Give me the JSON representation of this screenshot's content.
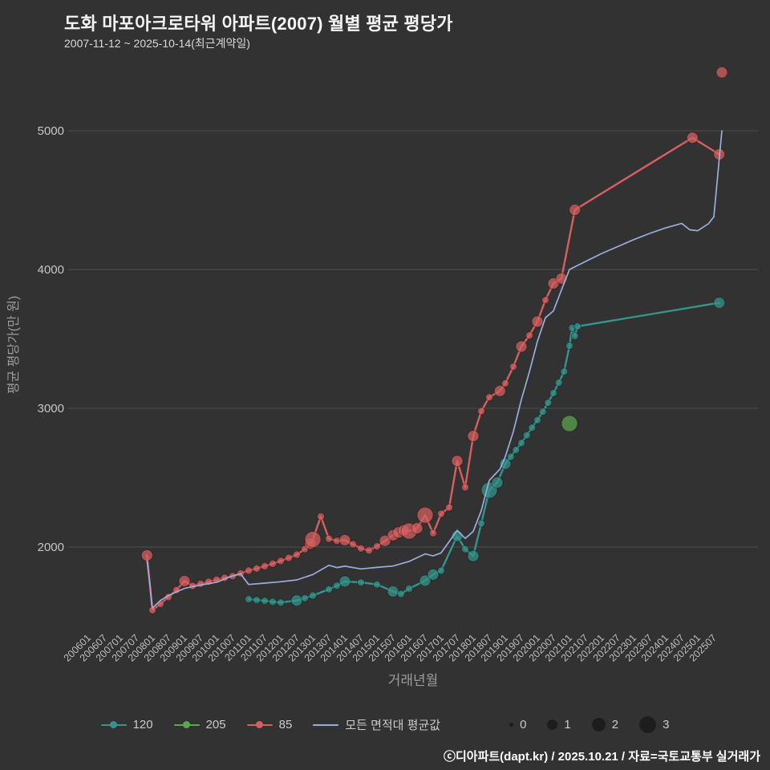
{
  "header": {
    "title": "도화 마포아크로타워 아파트(2007) 월별 평균 평당가",
    "subtitle": "2007-11-12 ~ 2025-10-14(최근계약일)"
  },
  "footer": {
    "text": "ⓒ디아파트(dapt.kr) / 2025.10.21 / 자료=국토교통부 실거래가"
  },
  "chart_data": {
    "type": "scatter",
    "title": "도화 마포아크로타워 아파트(2007) 월별 평균 평당가",
    "xlabel": "거래년월",
    "ylabel": "평균 평당가(만 원)",
    "background_color": "#323232",
    "grid": "horizontal",
    "legend_position": "bottom",
    "y_ticks": [
      2000,
      3000,
      4000,
      5000
    ],
    "ylim": [
      1450,
      5550
    ],
    "x_ticks": [
      "200601",
      "200607",
      "200701",
      "200707",
      "200801",
      "200807",
      "200901",
      "200907",
      "201001",
      "201007",
      "201101",
      "201107",
      "201201",
      "201207",
      "201301",
      "201307",
      "201401",
      "201407",
      "201501",
      "201507",
      "201601",
      "201607",
      "201701",
      "201707",
      "201801",
      "201807",
      "201901",
      "201907",
      "202001",
      "202007",
      "202101",
      "202107",
      "202201",
      "202207",
      "202301",
      "202307",
      "202401",
      "202407",
      "202501",
      "202507"
    ],
    "size_legend": {
      "label_values": [
        0,
        1,
        2,
        3
      ]
    },
    "series": [
      {
        "name": "120",
        "color": "#35948b",
        "mode": "lines+markers",
        "points": [
          [
            201101,
            1625,
            1
          ],
          [
            201104,
            1618,
            1
          ],
          [
            201107,
            1612,
            1
          ],
          [
            201110,
            1605,
            1
          ],
          [
            201201,
            1600,
            1
          ],
          [
            201207,
            1615,
            2
          ],
          [
            201210,
            1632,
            1
          ],
          [
            201301,
            1650,
            1
          ],
          [
            201307,
            1695,
            1
          ],
          [
            201310,
            1722,
            1
          ],
          [
            201401,
            1752,
            2
          ],
          [
            201407,
            1745,
            1
          ],
          [
            201501,
            1730,
            1
          ],
          [
            201507,
            1680,
            2
          ],
          [
            201510,
            1662,
            1
          ],
          [
            201601,
            1700,
            1
          ],
          [
            201607,
            1758,
            2
          ],
          [
            201610,
            1802,
            2
          ],
          [
            201701,
            1830,
            1
          ],
          [
            201707,
            2080,
            2
          ],
          [
            201710,
            1985,
            1
          ],
          [
            201801,
            1935,
            2
          ],
          [
            201804,
            2170,
            1
          ],
          [
            201807,
            2410,
            3
          ],
          [
            201810,
            2465,
            2
          ],
          [
            201901,
            2600,
            2
          ],
          [
            201903,
            2650,
            1
          ],
          [
            201905,
            2700,
            1
          ],
          [
            201907,
            2750,
            1
          ],
          [
            201909,
            2805,
            1
          ],
          [
            201911,
            2860,
            1
          ],
          [
            202001,
            2915,
            1
          ],
          [
            202003,
            2975,
            1
          ],
          [
            202005,
            3040,
            1
          ],
          [
            202007,
            3110,
            1
          ],
          [
            202009,
            3185,
            1
          ],
          [
            202011,
            3265,
            1
          ],
          [
            202101,
            3450,
            1
          ],
          [
            202102,
            3580,
            1
          ],
          [
            202103,
            3520,
            1
          ],
          [
            202104,
            3590,
            1
          ],
          [
            202509,
            3760,
            2
          ]
        ]
      },
      {
        "name": "205",
        "color": "#5ba54d",
        "mode": "markers",
        "points": [
          [
            202101,
            2890,
            3
          ]
        ]
      },
      {
        "name": "85",
        "color": "#d75f5f",
        "mode": "lines+markers",
        "points": [
          [
            200711,
            1940,
            2
          ],
          [
            200801,
            1545,
            1
          ],
          [
            200804,
            1590,
            1
          ],
          [
            200807,
            1640,
            1
          ],
          [
            200810,
            1690,
            1
          ],
          [
            200901,
            1755,
            2
          ],
          [
            200904,
            1720,
            1
          ],
          [
            200907,
            1735,
            1
          ],
          [
            200910,
            1750,
            1
          ],
          [
            201001,
            1765,
            1
          ],
          [
            201004,
            1778,
            1
          ],
          [
            201007,
            1790,
            1
          ],
          [
            201010,
            1810,
            1
          ],
          [
            201101,
            1830,
            1
          ],
          [
            201104,
            1845,
            1
          ],
          [
            201107,
            1862,
            1
          ],
          [
            201110,
            1880,
            1
          ],
          [
            201201,
            1900,
            1
          ],
          [
            201204,
            1922,
            1
          ],
          [
            201207,
            1945,
            1
          ],
          [
            201210,
            1985,
            1
          ],
          [
            201212,
            2025,
            2
          ],
          [
            201301,
            2055,
            3
          ],
          [
            201304,
            2220,
            1
          ],
          [
            201307,
            2060,
            1
          ],
          [
            201310,
            2045,
            1
          ],
          [
            201401,
            2050,
            2
          ],
          [
            201404,
            2020,
            1
          ],
          [
            201407,
            1990,
            1
          ],
          [
            201410,
            1975,
            1
          ],
          [
            201501,
            2005,
            1
          ],
          [
            201504,
            2045,
            2
          ],
          [
            201507,
            2085,
            2
          ],
          [
            201509,
            2105,
            2
          ],
          [
            201511,
            2120,
            2
          ],
          [
            201601,
            2115,
            3
          ],
          [
            201604,
            2135,
            2
          ],
          [
            201607,
            2230,
            3
          ],
          [
            201610,
            2100,
            1
          ],
          [
            201701,
            2240,
            1
          ],
          [
            201704,
            2285,
            1
          ],
          [
            201707,
            2620,
            2
          ],
          [
            201710,
            2430,
            1
          ],
          [
            201801,
            2800,
            2
          ],
          [
            201804,
            2980,
            1
          ],
          [
            201807,
            3080,
            1
          ],
          [
            201811,
            3125,
            2
          ],
          [
            201901,
            3180,
            1
          ],
          [
            201904,
            3300,
            1
          ],
          [
            201907,
            3445,
            2
          ],
          [
            201910,
            3525,
            1
          ],
          [
            202001,
            3625,
            2
          ],
          [
            202004,
            3780,
            1
          ],
          [
            202007,
            3900,
            2
          ],
          [
            202010,
            3935,
            2
          ],
          [
            202103,
            4430,
            2
          ],
          [
            202411,
            4950,
            2
          ],
          [
            202509,
            4830,
            2
          ],
          [
            202510,
            5420,
            2,
            "detached"
          ]
        ]
      },
      {
        "name": "모든 면적대 평균값",
        "color": "#9aaede",
        "mode": "lines",
        "points": [
          [
            200711,
            1900
          ],
          [
            200712,
            1740
          ],
          [
            200801,
            1560
          ],
          [
            200804,
            1615
          ],
          [
            200807,
            1650
          ],
          [
            200811,
            1685
          ],
          [
            200901,
            1702
          ],
          [
            200907,
            1726
          ],
          [
            201001,
            1746
          ],
          [
            201007,
            1792
          ],
          [
            201010,
            1806
          ],
          [
            201101,
            1730
          ],
          [
            201107,
            1740
          ],
          [
            201201,
            1750
          ],
          [
            201207,
            1763
          ],
          [
            201301,
            1802
          ],
          [
            201307,
            1868
          ],
          [
            201310,
            1852
          ],
          [
            201401,
            1862
          ],
          [
            201407,
            1842
          ],
          [
            201501,
            1853
          ],
          [
            201507,
            1863
          ],
          [
            201601,
            1896
          ],
          [
            201607,
            1950
          ],
          [
            201610,
            1936
          ],
          [
            201701,
            1958
          ],
          [
            201707,
            2120
          ],
          [
            201710,
            2062
          ],
          [
            201801,
            2112
          ],
          [
            201804,
            2262
          ],
          [
            201807,
            2480
          ],
          [
            201811,
            2562
          ],
          [
            201901,
            2652
          ],
          [
            201904,
            2832
          ],
          [
            201907,
            3062
          ],
          [
            201910,
            3262
          ],
          [
            202001,
            3482
          ],
          [
            202004,
            3652
          ],
          [
            202007,
            3702
          ],
          [
            202010,
            3852
          ],
          [
            202101,
            4000
          ],
          [
            202107,
            4058
          ],
          [
            202201,
            4115
          ],
          [
            202207,
            4165
          ],
          [
            202301,
            4215
          ],
          [
            202307,
            4260
          ],
          [
            202401,
            4300
          ],
          [
            202407,
            4332
          ],
          [
            202410,
            4286
          ],
          [
            202501,
            4280
          ],
          [
            202505,
            4330
          ],
          [
            202507,
            4380
          ],
          [
            202510,
            5000
          ]
        ]
      }
    ]
  }
}
